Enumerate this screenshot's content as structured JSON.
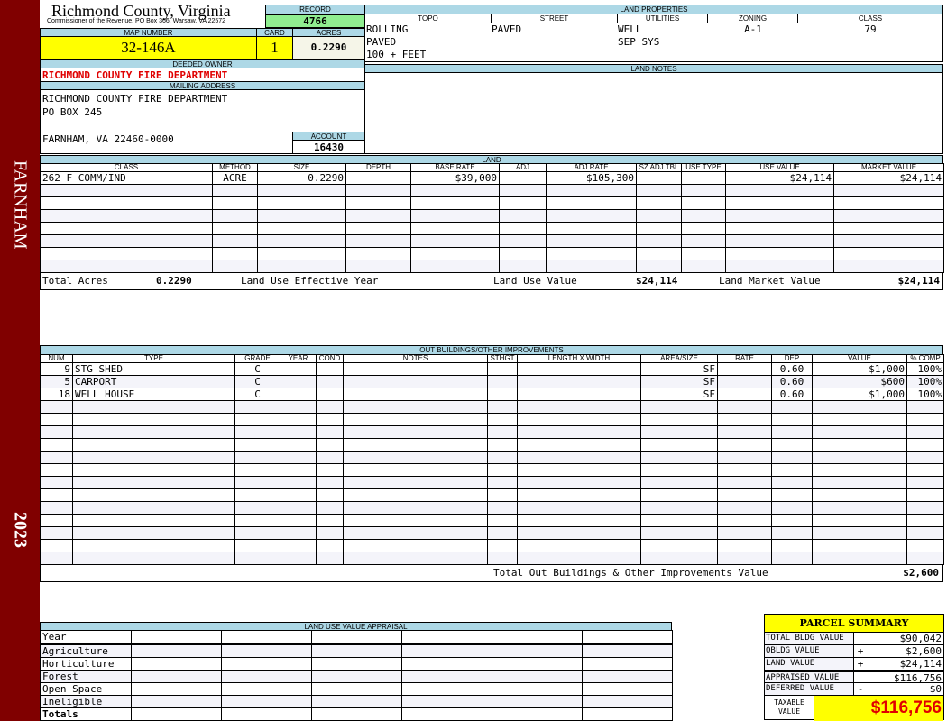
{
  "sidebar": {
    "district": "FARNHAM",
    "year": "2023",
    "color": "#800000"
  },
  "header": {
    "title": "Richmond County, Virginia",
    "subtitle": "Commissioner of the Revenue, PO Box 366, Warsaw, VA 22572"
  },
  "record": {
    "label": "RECORD",
    "value": "4766"
  },
  "parcel": {
    "map_label": "MAP NUMBER",
    "map_number": "32-146A",
    "card_label": "CARD",
    "card": "1",
    "acres_label": "ACRES",
    "acres": "0.2290"
  },
  "owner": {
    "label": "DEEDED OWNER",
    "name": "RICHMOND COUNTY FIRE DEPARTMENT",
    "mailing_label": "MAILING ADDRESS",
    "address": [
      "RICHMOND COUNTY FIRE DEPARTMENT",
      "PO BOX 245",
      "",
      "FARNHAM, VA 22460-0000"
    ],
    "account_label": "ACCOUNT",
    "account": "16430"
  },
  "land_properties": {
    "label": "LAND PROPERTIES",
    "columns": [
      "TOPO",
      "STREET",
      "UTILITIES",
      "ZONING",
      "CLASS"
    ],
    "topo": [
      "ROLLING",
      "PAVED",
      "100 + FEET"
    ],
    "street": [
      "PAVED"
    ],
    "utilities": [
      "WELL",
      "SEP SYS"
    ],
    "zoning": "A-1",
    "class": "79"
  },
  "land_notes": {
    "label": "LAND NOTES"
  },
  "land": {
    "label": "LAND",
    "columns": [
      "CLASS",
      "METHOD",
      "SIZE",
      "DEPTH",
      "BASE RATE",
      "ADJ",
      "ADJ RATE",
      "SZ ADJ TBL",
      "USE TYPE",
      "USE VALUE",
      "MARKET VALUE"
    ],
    "rows": [
      [
        "262 F COMM/IND",
        "ACRE",
        "0.2290",
        "",
        "$39,000",
        "",
        "$105,300",
        "",
        "",
        "$24,114",
        "$24,114"
      ]
    ],
    "totals": {
      "acres_label": "Total Acres",
      "acres": "0.2290",
      "eff_year_label": "Land Use Effective Year",
      "use_value_label": "Land Use Value",
      "use_value": "$24,114",
      "market_label": "Land Market Value",
      "market_value": "$24,114"
    }
  },
  "outbuildings": {
    "label": "OUT BUILDINGS/OTHER IMPROVEMENTS",
    "columns": [
      "NUM",
      "TYPE",
      "GRADE",
      "YEAR",
      "COND",
      "NOTES",
      "STHGT",
      "LENGTH X WIDTH",
      "AREA/SIZE",
      "RATE",
      "DEP",
      "VALUE",
      "% COMP"
    ],
    "rows": [
      [
        "9",
        "STG SHED",
        "C",
        "",
        "",
        "",
        "",
        "",
        "SF",
        "",
        "0.60",
        "$1,000",
        "100%"
      ],
      [
        "5",
        "CARPORT",
        "C",
        "",
        "",
        "",
        "",
        "",
        "SF",
        "",
        "0.60",
        "$600",
        "100%"
      ],
      [
        "18",
        "WELL HOUSE",
        "C",
        "",
        "",
        "",
        "",
        "",
        "SF",
        "",
        "0.60",
        "$1,000",
        "100%"
      ]
    ],
    "total_label": "Total Out Buildings & Other Improvements Value",
    "total": "$2,600"
  },
  "land_use_appraisal": {
    "label": "LAND USE VALUE APPRAISAL",
    "year_label": "Year",
    "rows": [
      "Agriculture",
      "Horticulture",
      "Forest",
      "Open Space",
      "Ineligible"
    ],
    "totals_label": "Totals"
  },
  "summary": {
    "title": "PARCEL SUMMARY",
    "rows": [
      {
        "label": "TOTAL BLDG VALUE",
        "sign": "",
        "value": "$90,042"
      },
      {
        "label": "OBLDG VALUE",
        "sign": "+",
        "value": "$2,600"
      },
      {
        "label": "LAND VALUE",
        "sign": "+",
        "value": "$24,114"
      },
      {
        "label": "APPRAISED VALUE",
        "sign": "",
        "value": "$116,756"
      },
      {
        "label": "DEFERRED VALUE",
        "sign": "-",
        "value": "$0"
      }
    ],
    "taxable_label": "TAXABLE VALUE",
    "taxable": "$116,756"
  }
}
